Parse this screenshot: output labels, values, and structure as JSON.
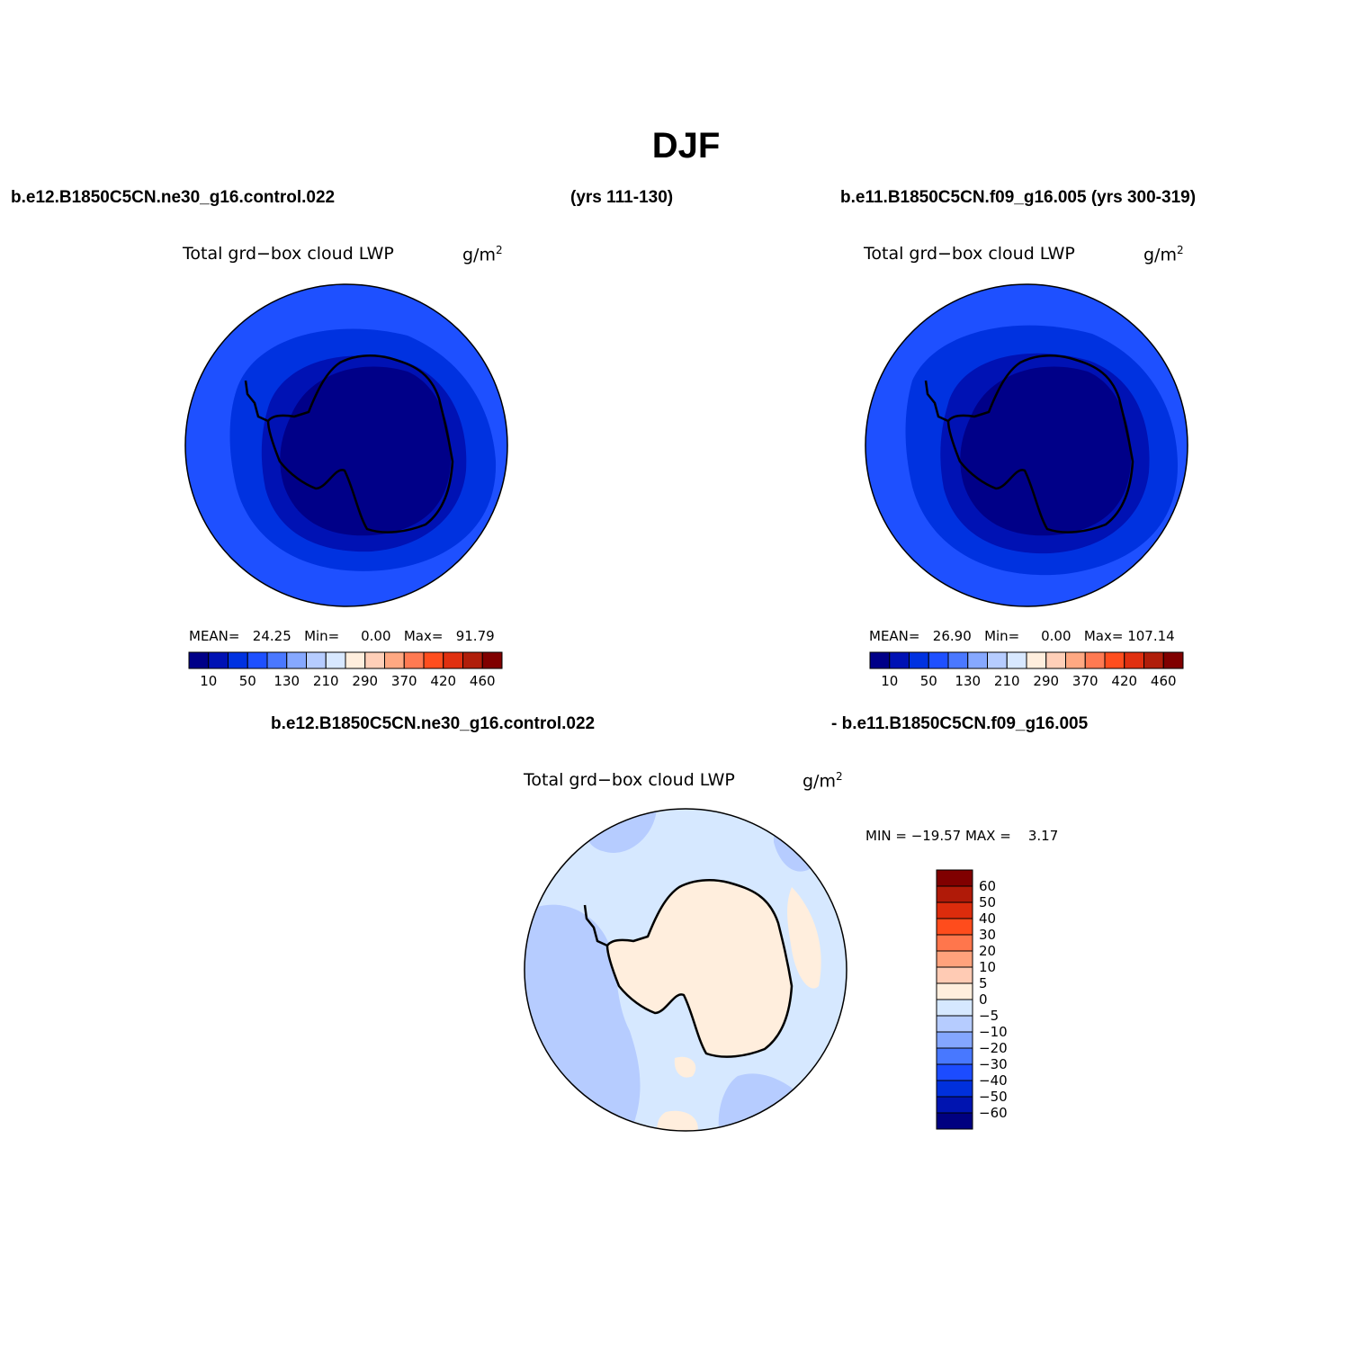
{
  "page_title": "DJF",
  "top_left_case": "b.e12.B1850C5CN.ne30_g16.control.022",
  "top_left_years": "(yrs 111-130)",
  "top_right_case": "b.e11.B1850C5CN.f09_g16.005 (yrs 300-319)",
  "diff_case_a": "b.e12.B1850C5CN.ne30_g16.control.022",
  "diff_case_b": "- b.e11.B1850C5CN.f09_g16.005",
  "variable": "Total grd−box cloud LWP",
  "units_base": "g/m",
  "units_exp": "2",
  "panel_left": {
    "mean_label": "MEAN=",
    "mean": "24.25",
    "min_label": "Min=",
    "min": "0.00",
    "max_label": "Max=",
    "max": "91.79"
  },
  "panel_right": {
    "mean_label": "MEAN=",
    "mean": "26.90",
    "min_label": "Min=",
    "min": "0.00",
    "max_label": "Max=",
    "max": "107.14"
  },
  "panel_diff": {
    "stat_text": "MIN = −19.57 MAX =    3.17"
  },
  "colors": {
    "abs_scale": [
      "#000088",
      "#0012b4",
      "#0032e0",
      "#1e50ff",
      "#4a78ff",
      "#86a8ff",
      "#b6ccff",
      "#d8e8ff",
      "#ffeedd",
      "#ffcfb8",
      "#ffa882",
      "#ff7a52",
      "#ff4e1e",
      "#e03010",
      "#b01e0a",
      "#800000"
    ],
    "diff_scale": [
      "#000080",
      "#0014b0",
      "#0030dc",
      "#1c4cff",
      "#4878ff",
      "#84a6ff",
      "#b6ccff",
      "#d6e8ff",
      "#ffeedd",
      "#ffcbb4",
      "#ffa27c",
      "#ff764c",
      "#ff4c1c",
      "#dc2c0c",
      "#b01a08",
      "#800000"
    ],
    "coast": "#000000"
  },
  "abs_colorbar_labels": [
    "10",
    "50",
    "130",
    "210",
    "290",
    "370",
    "420",
    "460"
  ],
  "diff_colorbar_labels": [
    "60",
    "50",
    "40",
    "30",
    "20",
    "10",
    "5",
    "0",
    "−5",
    "−10",
    "−20",
    "−30",
    "−40",
    "−50",
    "−60"
  ]
}
